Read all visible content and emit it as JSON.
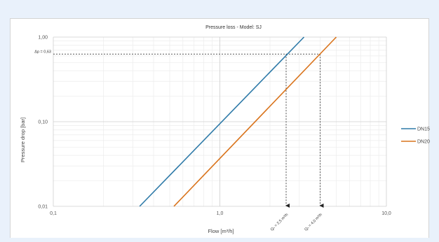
{
  "chart_data": {
    "type": "line",
    "title": "Pressure loss - Model: SJ",
    "xlabel": "Flow [m³/h]",
    "ylabel": "Pressure drop [bar]",
    "x_scale": "log",
    "y_scale": "log",
    "xlim": [
      0.1,
      10
    ],
    "ylim": [
      0.01,
      1
    ],
    "x_ticks": [
      0.1,
      1,
      10
    ],
    "x_tick_labels": [
      "0,1",
      "1,0",
      "10,0"
    ],
    "y_ticks": [
      0.01,
      0.1,
      1
    ],
    "y_tick_labels": [
      "0,01",
      "0,10",
      "1,00"
    ],
    "grid": true,
    "legend_position": "right",
    "series": [
      {
        "name": "DN15",
        "color": "#2e7aa8",
        "x": [
          0.33,
          3.2
        ],
        "y": [
          0.01,
          1.0
        ]
      },
      {
        "name": "DN20",
        "color": "#d9731b",
        "x": [
          0.53,
          5.0
        ],
        "y": [
          0.01,
          1.0
        ]
      }
    ],
    "annotations": [
      {
        "kind": "hline",
        "y": 0.63,
        "label": "Δp = 0,63"
      },
      {
        "kind": "vline",
        "x": 2.5,
        "label": "Qₙ = 2,5 m³/h"
      },
      {
        "kind": "vline",
        "x": 4.0,
        "label": "Qₙ = 4,0 m³/h"
      }
    ]
  }
}
